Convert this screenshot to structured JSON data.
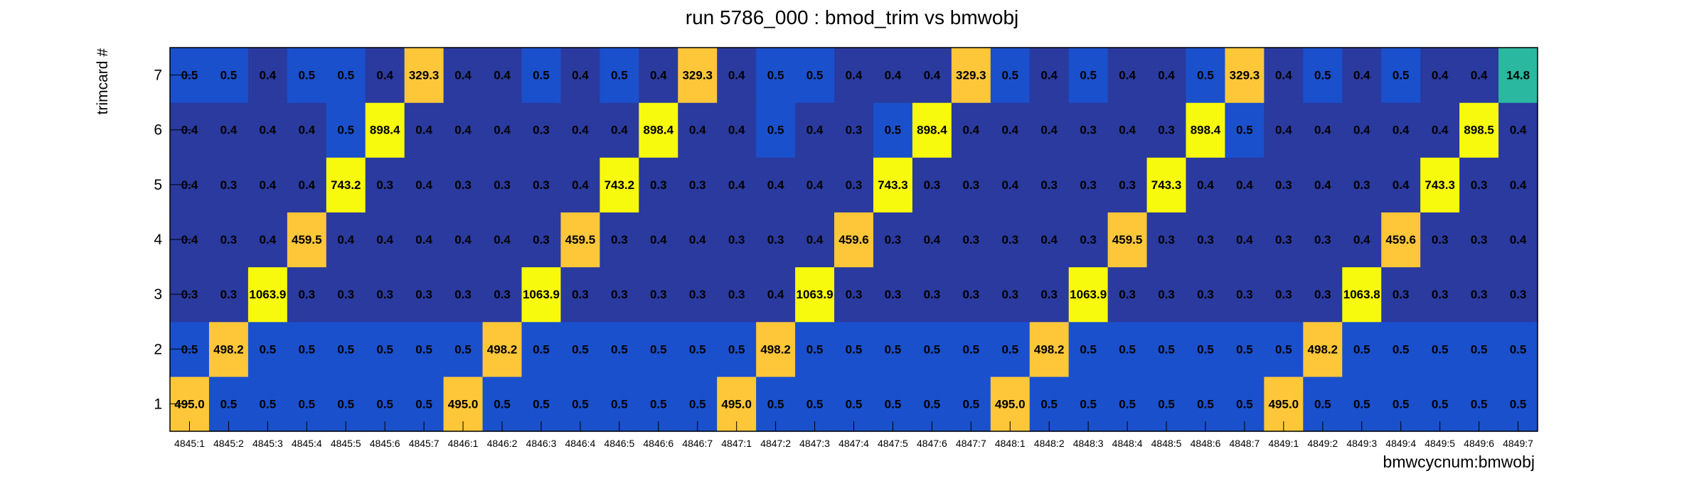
{
  "chart_data": {
    "type": "heatmap",
    "title": "run 5786_000 : bmod_trim vs bmwobj",
    "xlabel": "bmwcycnum:bmwobj",
    "ylabel": "trimcard #",
    "x": [
      "4845:1",
      "4845:2",
      "4845:3",
      "4845:4",
      "4845:5",
      "4845:6",
      "4845:7",
      "4846:1",
      "4846:2",
      "4846:3",
      "4846:4",
      "4846:5",
      "4846:6",
      "4846:7",
      "4847:1",
      "4847:2",
      "4847:3",
      "4847:4",
      "4847:5",
      "4847:6",
      "4847:7",
      "4848:1",
      "4848:2",
      "4848:3",
      "4848:4",
      "4848:5",
      "4848:6",
      "4848:7",
      "4849:1",
      "4849:2",
      "4849:3",
      "4849:4",
      "4849:5",
      "4849:6",
      "4849:7"
    ],
    "y": [
      "1",
      "2",
      "3",
      "4",
      "5",
      "6",
      "7"
    ],
    "values": [
      [
        495.0,
        0.5,
        0.5,
        0.5,
        0.5,
        0.5,
        0.5,
        495.0,
        0.5,
        0.5,
        0.5,
        0.5,
        0.5,
        0.5,
        495.0,
        0.5,
        0.5,
        0.5,
        0.5,
        0.5,
        0.5,
        495.0,
        0.5,
        0.5,
        0.5,
        0.5,
        0.5,
        0.5,
        495.0,
        0.5,
        0.5,
        0.5,
        0.5,
        0.5,
        0.5
      ],
      [
        0.5,
        498.2,
        0.5,
        0.5,
        0.5,
        0.5,
        0.5,
        0.5,
        498.2,
        0.5,
        0.5,
        0.5,
        0.5,
        0.5,
        0.5,
        498.2,
        0.5,
        0.5,
        0.5,
        0.5,
        0.5,
        0.5,
        498.2,
        0.5,
        0.5,
        0.5,
        0.5,
        0.5,
        0.5,
        498.2,
        0.5,
        0.5,
        0.5,
        0.5,
        0.5
      ],
      [
        0.3,
        0.3,
        1063.9,
        0.3,
        0.3,
        0.3,
        0.3,
        0.3,
        0.3,
        1063.9,
        0.3,
        0.3,
        0.3,
        0.3,
        0.3,
        0.4,
        1063.9,
        0.3,
        0.3,
        0.3,
        0.3,
        0.3,
        0.3,
        1063.9,
        0.3,
        0.3,
        0.3,
        0.3,
        0.3,
        0.3,
        1063.8,
        0.3,
        0.3,
        0.3,
        0.3
      ],
      [
        0.4,
        0.3,
        0.4,
        459.5,
        0.4,
        0.4,
        0.4,
        0.4,
        0.4,
        0.3,
        459.5,
        0.3,
        0.4,
        0.4,
        0.3,
        0.3,
        0.4,
        459.6,
        0.3,
        0.4,
        0.3,
        0.3,
        0.4,
        0.3,
        459.5,
        0.3,
        0.3,
        0.4,
        0.3,
        0.3,
        0.4,
        459.6,
        0.3,
        0.3,
        0.4
      ],
      [
        0.4,
        0.3,
        0.4,
        0.4,
        743.2,
        0.3,
        0.4,
        0.3,
        0.3,
        0.3,
        0.4,
        743.2,
        0.3,
        0.3,
        0.4,
        0.4,
        0.4,
        0.3,
        743.3,
        0.3,
        0.3,
        0.4,
        0.3,
        0.3,
        0.3,
        743.3,
        0.4,
        0.4,
        0.3,
        0.4,
        0.3,
        0.4,
        743.3,
        0.3,
        0.4
      ],
      [
        0.4,
        0.4,
        0.4,
        0.4,
        0.5,
        898.4,
        0.4,
        0.4,
        0.4,
        0.3,
        0.4,
        0.4,
        898.4,
        0.4,
        0.4,
        0.5,
        0.4,
        0.3,
        0.5,
        898.4,
        0.4,
        0.4,
        0.4,
        0.3,
        0.4,
        0.3,
        898.4,
        0.5,
        0.4,
        0.4,
        0.4,
        0.4,
        0.4,
        898.5,
        0.4
      ],
      [
        0.5,
        0.5,
        0.4,
        0.5,
        0.5,
        0.4,
        329.3,
        0.4,
        0.4,
        0.5,
        0.4,
        0.5,
        0.4,
        329.3,
        0.4,
        0.5,
        0.5,
        0.4,
        0.4,
        0.4,
        329.3,
        0.5,
        0.4,
        0.5,
        0.4,
        0.4,
        0.5,
        329.3,
        0.4,
        0.5,
        0.4,
        0.5,
        0.4,
        0.4,
        14.8
      ]
    ],
    "colors": {
      "low_dark": "#2a3a9e",
      "low": "#1a50cc",
      "mid": "#2ab8a0",
      "high": "#fec73a",
      "max": "#f8fa0d"
    },
    "grid": false,
    "legend": "none"
  }
}
